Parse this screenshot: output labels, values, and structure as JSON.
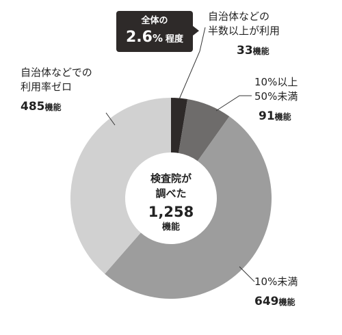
{
  "chart_data": {
    "type": "donut",
    "total": {
      "line1": "検査院が",
      "line2": "調べた",
      "value": "1,258",
      "unit": "機能"
    },
    "callout": {
      "line1": "全体の",
      "value": "2.6",
      "pct": "%",
      "suffix": "程度"
    },
    "unit": "機能",
    "slices": [
      {
        "label_lines": [
          "自治体などの",
          "半数以上が利用"
        ],
        "value": 33,
        "value_text": "33",
        "color": "#2e2a29"
      },
      {
        "label_lines": [
          "10%以上",
          "50%未満"
        ],
        "value": 91,
        "value_text": "91",
        "color": "#6e6c6b"
      },
      {
        "label_lines": [
          "10%未満"
        ],
        "value": 649,
        "value_text": "649",
        "color": "#9d9d9d"
      },
      {
        "label_lines": [
          "自治体などでの",
          "利用率ゼロ"
        ],
        "value": 485,
        "value_text": "485",
        "color": "#d1d1d1"
      }
    ]
  }
}
